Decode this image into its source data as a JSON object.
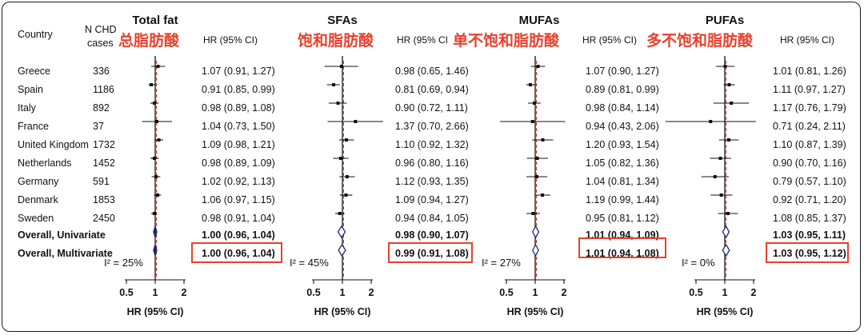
{
  "columns": {
    "country": "Country",
    "cases_line1": "N CHD",
    "cases_line2": "cases"
  },
  "panel_xlabel": "HR (95% CI)",
  "colors": {
    "annotation_red": "#e8412c",
    "box_red": "#e8412c",
    "diamond": "#1f2a6b",
    "ref_line": "#c0392b"
  },
  "chart_data": [
    {
      "type": "forest",
      "title": "Total fat",
      "annotation": "总脂肪酸",
      "column_label": "HR (95% CI)",
      "x_ticks": [
        "0.5",
        "1",
        "2"
      ],
      "xlabel": "HR (95% CI)",
      "xlim": [
        0.3,
        3.5
      ],
      "x_scale": "log",
      "heterogeneity": "I² = 25%",
      "rows": [
        {
          "country": "Greece",
          "cases": "336",
          "hr": 1.07,
          "lo": 0.91,
          "hi": 1.27,
          "label": "1.07 (0.91, 1.27)"
        },
        {
          "country": "Spain",
          "cases": "1186",
          "hr": 0.91,
          "lo": 0.85,
          "hi": 0.99,
          "label": "0.91 (0.85, 0.99)"
        },
        {
          "country": "Italy",
          "cases": "892",
          "hr": 0.98,
          "lo": 0.89,
          "hi": 1.08,
          "label": "0.98 (0.89, 1.08)"
        },
        {
          "country": "France",
          "cases": "37",
          "hr": 1.04,
          "lo": 0.73,
          "hi": 1.5,
          "label": "1.04 (0.73, 1.50)"
        },
        {
          "country": "United Kingdom",
          "cases": "1732",
          "hr": 1.09,
          "lo": 0.98,
          "hi": 1.21,
          "label": "1.09 (0.98, 1.21)"
        },
        {
          "country": "Netherlands",
          "cases": "1452",
          "hr": 0.98,
          "lo": 0.89,
          "hi": 1.09,
          "label": "0.98 (0.89, 1.09)"
        },
        {
          "country": "Germany",
          "cases": "591",
          "hr": 1.02,
          "lo": 0.92,
          "hi": 1.13,
          "label": "1.02 (0.92, 1.13)"
        },
        {
          "country": "Denmark",
          "cases": "1853",
          "hr": 1.06,
          "lo": 0.97,
          "hi": 1.15,
          "label": "1.06 (0.97, 1.15)"
        },
        {
          "country": "Sweden",
          "cases": "2450",
          "hr": 0.98,
          "lo": 0.91,
          "hi": 1.04,
          "label": "0.98 (0.91, 1.04)"
        }
      ],
      "overall": [
        {
          "name": "Overall, Univariate",
          "hr": 1.0,
          "lo": 0.96,
          "hi": 1.04,
          "label": "1.00 (0.96, 1.04)",
          "boxed": false
        },
        {
          "name": "Overall, Multivariate",
          "hr": 1.0,
          "lo": 0.96,
          "hi": 1.04,
          "label": "1.00 (0.96, 1.04)",
          "boxed": true
        }
      ]
    },
    {
      "type": "forest",
      "title": "SFAs",
      "annotation": "饱和脂肪酸",
      "column_label": "HR (95% CI",
      "x_ticks": [
        "0.5",
        "1",
        "2"
      ],
      "xlabel": "HR (95% CI)",
      "xlim": [
        0.3,
        3.5
      ],
      "x_scale": "log",
      "heterogeneity": "I² = 45%",
      "rows": [
        {
          "hr": 0.98,
          "lo": 0.65,
          "hi": 1.46,
          "label": "0.98 (0.65, 1.46)"
        },
        {
          "hr": 0.81,
          "lo": 0.69,
          "hi": 0.94,
          "label": "0.81 (0.69, 0.94)"
        },
        {
          "hr": 0.9,
          "lo": 0.72,
          "hi": 1.11,
          "label": "0.90 (0.72, 1.11)"
        },
        {
          "hr": 1.37,
          "lo": 0.7,
          "hi": 2.66,
          "label": "1.37 (0.70, 2.66)"
        },
        {
          "hr": 1.1,
          "lo": 0.92,
          "hi": 1.32,
          "label": "1.10 (0.92, 1.32)"
        },
        {
          "hr": 0.96,
          "lo": 0.8,
          "hi": 1.16,
          "label": "0.96 (0.80, 1.16)"
        },
        {
          "hr": 1.12,
          "lo": 0.93,
          "hi": 1.35,
          "label": "1.12 (0.93, 1.35)"
        },
        {
          "hr": 1.09,
          "lo": 0.94,
          "hi": 1.27,
          "label": "1.09 (0.94, 1.27)"
        },
        {
          "hr": 0.94,
          "lo": 0.84,
          "hi": 1.05,
          "label": "0.94 (0.84, 1.05)"
        }
      ],
      "overall": [
        {
          "hr": 0.98,
          "lo": 0.9,
          "hi": 1.07,
          "label": "0.98 (0.90, 1.07)",
          "boxed": false
        },
        {
          "hr": 0.99,
          "lo": 0.91,
          "hi": 1.08,
          "label": "0.99 (0.91, 1.08)",
          "boxed": true
        }
      ]
    },
    {
      "type": "forest",
      "title": "MUFAs",
      "annotation": "单不饱和脂肪酸",
      "column_label": "HR (95% CI)",
      "x_ticks": [
        "0.5",
        "1",
        "2"
      ],
      "xlabel": "HR (95% CI)",
      "xlim": [
        0.3,
        3.5
      ],
      "x_scale": "log",
      "heterogeneity": "I² = 27%",
      "rows": [
        {
          "hr": 1.07,
          "lo": 0.9,
          "hi": 1.27,
          "label": "1.07 (0.90, 1.27)"
        },
        {
          "hr": 0.89,
          "lo": 0.81,
          "hi": 0.99,
          "label": "0.89 (0.81, 0.99)"
        },
        {
          "hr": 0.98,
          "lo": 0.84,
          "hi": 1.14,
          "label": "0.98 (0.84, 1.14)"
        },
        {
          "hr": 0.94,
          "lo": 0.43,
          "hi": 2.06,
          "label": "0.94 (0.43, 2.06)"
        },
        {
          "hr": 1.2,
          "lo": 0.93,
          "hi": 1.54,
          "label": "1.20 (0.93, 1.54)"
        },
        {
          "hr": 1.05,
          "lo": 0.82,
          "hi": 1.36,
          "label": "1.05 (0.82, 1.36)"
        },
        {
          "hr": 1.04,
          "lo": 0.81,
          "hi": 1.34,
          "label": "1.04 (0.81, 1.34)"
        },
        {
          "hr": 1.19,
          "lo": 0.99,
          "hi": 1.44,
          "label": "1.19 (0.99, 1.44)"
        },
        {
          "hr": 0.95,
          "lo": 0.81,
          "hi": 1.12,
          "label": "0.95 (0.81, 1.12)"
        }
      ],
      "overall": [
        {
          "hr": 1.01,
          "lo": 0.94,
          "hi": 1.09,
          "label": "1.01 (0.94, 1.09)",
          "boxed": false
        },
        {
          "hr": 1.01,
          "lo": 0.94,
          "hi": 1.08,
          "label": "1.01 (0.94, 1.08)",
          "boxed": true
        }
      ]
    },
    {
      "type": "forest",
      "title": "PUFAs",
      "annotation": "多不饱和脂肪酸",
      "column_label": "HR (95% CI)",
      "x_ticks": [
        "0.5",
        "1",
        "2"
      ],
      "xlabel": "HR (95% CI)",
      "xlim": [
        0.3,
        3.5
      ],
      "x_scale": "log",
      "heterogeneity": "I² = 0%",
      "rows": [
        {
          "hr": 1.01,
          "lo": 0.81,
          "hi": 1.26,
          "label": "1.01 (0.81, 1.26)"
        },
        {
          "hr": 1.11,
          "lo": 0.97,
          "hi": 1.27,
          "label": "1.11 (0.97, 1.27)"
        },
        {
          "hr": 1.17,
          "lo": 0.76,
          "hi": 1.79,
          "label": "1.17 (0.76, 1.79)"
        },
        {
          "hr": 0.71,
          "lo": 0.24,
          "hi": 2.11,
          "label": "0.71 (0.24, 2.11)"
        },
        {
          "hr": 1.1,
          "lo": 0.87,
          "hi": 1.39,
          "label": "1.10 (0.87, 1.39)"
        },
        {
          "hr": 0.9,
          "lo": 0.7,
          "hi": 1.16,
          "label": "0.90 (0.70, 1.16)"
        },
        {
          "hr": 0.79,
          "lo": 0.57,
          "hi": 1.1,
          "label": "0.79 (0.57, 1.10)"
        },
        {
          "hr": 0.92,
          "lo": 0.71,
          "hi": 1.2,
          "label": "0.92 (0.71, 1.20)"
        },
        {
          "hr": 1.08,
          "lo": 0.85,
          "hi": 1.37,
          "label": "1.08 (0.85, 1.37)"
        }
      ],
      "overall": [
        {
          "hr": 1.03,
          "lo": 0.95,
          "hi": 1.11,
          "label": "1.03 (0.95, 1.11)",
          "boxed": false
        },
        {
          "hr": 1.03,
          "lo": 0.95,
          "hi": 1.12,
          "label": "1.03 (0.95, 1.12)",
          "boxed": true
        }
      ]
    }
  ]
}
